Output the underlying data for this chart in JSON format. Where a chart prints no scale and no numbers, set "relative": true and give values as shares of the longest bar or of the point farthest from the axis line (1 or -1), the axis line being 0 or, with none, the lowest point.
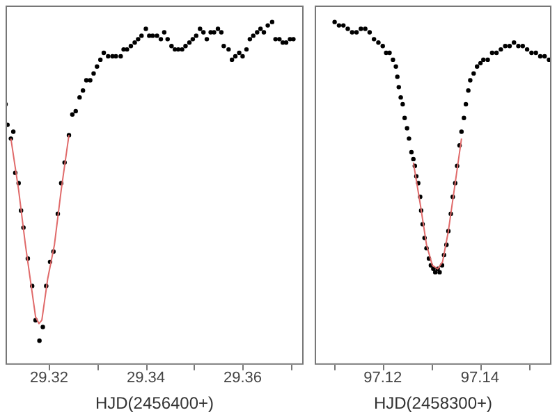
{
  "chart_data": [
    {
      "type": "scatter",
      "xlabel": "HJD(2456400+)",
      "relative": true,
      "tick_labels": "x",
      "grid": false,
      "legend": false,
      "xlim": [
        29.311,
        29.3726
      ],
      "xticks": [
        29.32,
        {
          "value": 29.33,
          "label": null
        },
        29.34,
        {
          "value": 29.35,
          "label": null
        },
        29.36,
        {
          "value": 29.37,
          "label": null
        }
      ],
      "series": [
        {
          "type": "scatter",
          "marker": "circle",
          "color": "#000000",
          "x": [
            29.311,
            29.3114,
            29.3121,
            29.3126,
            29.313,
            29.3137,
            29.3142,
            29.3147,
            29.3156,
            29.3165,
            29.3172,
            29.318,
            29.3187,
            29.3194,
            29.3202,
            29.3209,
            29.3218,
            29.3225,
            29.3232,
            29.3241,
            29.3248,
            29.3255,
            29.3263,
            29.327,
            29.3277,
            29.3285,
            29.3292,
            29.3299,
            29.3306,
            29.3313,
            29.3322,
            29.3331,
            29.3338,
            29.3348,
            29.3354,
            29.3361,
            29.3369,
            29.3377,
            29.3384,
            29.3391,
            29.34,
            29.3407,
            29.3414,
            29.3423,
            29.3431,
            29.3438,
            29.3445,
            29.3453,
            29.346,
            29.3467,
            29.3475,
            29.3482,
            29.349,
            29.3497,
            29.3504,
            29.3512,
            29.3519,
            29.3526,
            29.3534,
            29.3541,
            29.3549,
            29.3556,
            29.3561,
            29.3571,
            29.3578,
            29.3585,
            29.3593,
            29.36,
            29.3608,
            29.3615,
            29.3622,
            29.363,
            29.3637,
            29.3644,
            29.3652,
            29.3661,
            29.3668,
            29.3676,
            29.3683,
            29.369,
            29.3698,
            29.3705
          ],
          "values": [
            0.76,
            0.7,
            0.66,
            0.68,
            0.56,
            0.53,
            0.45,
            0.4,
            0.31,
            0.23,
            0.13,
            0.07,
            0.11,
            0.23,
            0.3,
            0.33,
            0.44,
            0.53,
            0.59,
            0.67,
            0.73,
            0.74,
            0.78,
            0.8,
            0.83,
            0.83,
            0.85,
            0.87,
            0.89,
            0.91,
            0.9,
            0.9,
            0.9,
            0.9,
            0.92,
            0.92,
            0.93,
            0.94,
            0.95,
            0.96,
            0.98,
            0.96,
            0.96,
            0.96,
            0.95,
            0.97,
            0.95,
            0.93,
            0.92,
            0.92,
            0.92,
            0.93,
            0.94,
            0.95,
            0.96,
            0.98,
            0.97,
            0.95,
            0.97,
            0.97,
            0.98,
            0.97,
            0.93,
            0.92,
            0.89,
            0.9,
            0.91,
            0.9,
            0.92,
            0.95,
            0.96,
            0.97,
            0.98,
            0.97,
            0.99,
            1,
            0.95,
            0.95,
            0.94,
            0.94,
            0.95,
            0.95
          ]
        },
        {
          "type": "line",
          "color": "#e06a6a",
          "x": [
            29.3121,
            29.3137,
            29.3151,
            29.3163,
            29.3172,
            29.3179,
            29.3185,
            29.3197,
            29.3211,
            29.3225,
            29.3241
          ],
          "values": [
            0.66,
            0.51,
            0.35,
            0.23,
            0.14,
            0.12,
            0.13,
            0.25,
            0.35,
            0.51,
            0.67
          ]
        }
      ]
    },
    {
      "type": "scatter",
      "xlabel": "HJD(2458300+)",
      "relative": true,
      "tick_labels": "x",
      "grid": false,
      "legend": false,
      "xlim": [
        97.106,
        97.1547
      ],
      "xticks": [
        {
          "value": 97.11,
          "label": null
        },
        97.12,
        {
          "value": 97.13,
          "label": null
        },
        97.14,
        {
          "value": 97.15,
          "label": null
        }
      ],
      "series": [
        {
          "type": "scatter",
          "marker": "circle",
          "color": "#000000",
          "x": [
            97.1101,
            97.111,
            97.1119,
            97.1128,
            97.1137,
            97.1146,
            97.1155,
            97.1164,
            97.1173,
            97.1182,
            97.1191,
            97.12,
            97.1207,
            97.1214,
            97.1221,
            97.1227,
            97.123,
            97.1233,
            97.1237,
            97.1241,
            97.1245,
            97.125,
            97.1254,
            97.1259,
            97.1263,
            97.1266,
            97.1269,
            97.1273,
            97.1277,
            97.1279,
            97.1282,
            97.1286,
            97.129,
            97.1295,
            97.1299,
            97.1304,
            97.1308,
            97.1313,
            97.1317,
            97.1322,
            97.1326,
            97.1331,
            97.1335,
            97.134,
            97.1344,
            97.1349,
            97.1353,
            97.1358,
            97.1362,
            97.1367,
            97.1371,
            97.1376,
            97.138,
            97.1387,
            97.1394,
            97.1401,
            97.1407,
            97.1416,
            97.1425,
            97.1434,
            97.1443,
            97.1452,
            97.1461,
            97.147,
            97.1479,
            97.1488,
            97.1497,
            97.1506,
            97.1515,
            97.1524,
            97.1533,
            97.1542
          ],
          "values": [
            1,
            0.99,
            0.99,
            0.98,
            0.97,
            0.97,
            0.98,
            0.98,
            0.97,
            0.95,
            0.94,
            0.93,
            0.91,
            0.91,
            0.89,
            0.87,
            0.84,
            0.81,
            0.78,
            0.76,
            0.72,
            0.69,
            0.66,
            0.62,
            0.6,
            0.58,
            0.55,
            0.53,
            0.49,
            0.45,
            0.41,
            0.37,
            0.34,
            0.31,
            0.29,
            0.28,
            0.27,
            0.28,
            0.27,
            0.29,
            0.32,
            0.35,
            0.39,
            0.44,
            0.49,
            0.53,
            0.58,
            0.64,
            0.68,
            0.72,
            0.76,
            0.8,
            0.83,
            0.85,
            0.87,
            0.88,
            0.89,
            0.89,
            0.91,
            0.91,
            0.92,
            0.93,
            0.93,
            0.94,
            0.93,
            0.93,
            0.92,
            0.91,
            0.91,
            0.9,
            0.9,
            0.89
          ]
        },
        {
          "type": "line",
          "color": "#e06a6a",
          "x": [
            97.1263,
            97.1277,
            97.129,
            97.1302,
            97.1313,
            97.1323,
            97.1335,
            97.1349,
            97.1362
          ],
          "values": [
            0.59,
            0.47,
            0.35,
            0.29,
            0.28,
            0.3,
            0.39,
            0.53,
            0.66
          ]
        }
      ]
    }
  ]
}
